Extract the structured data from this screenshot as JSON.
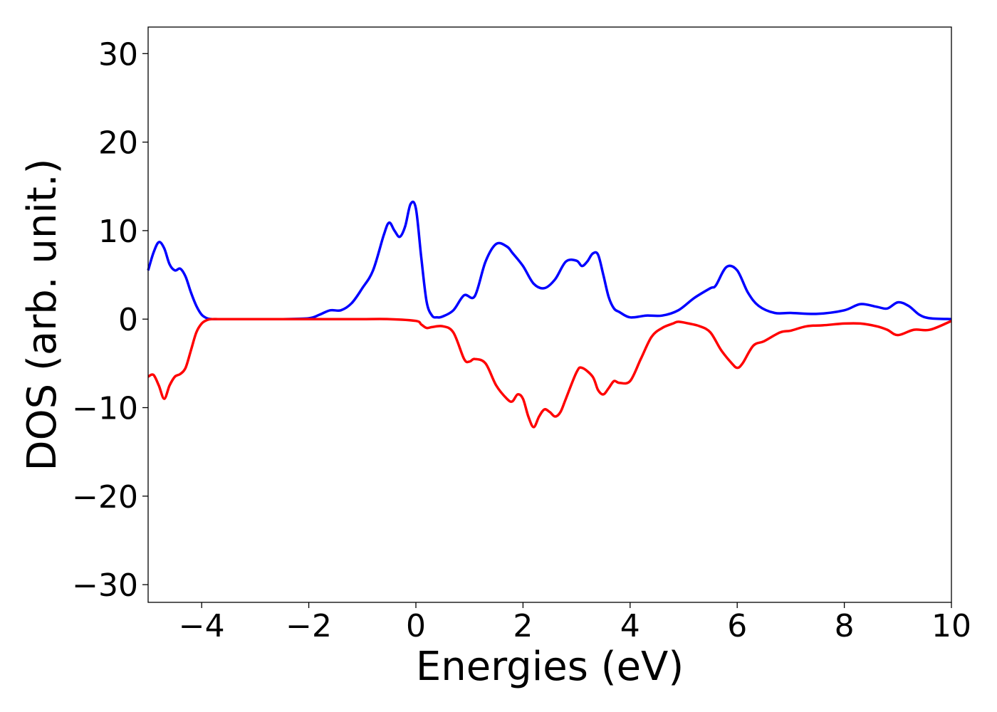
{
  "chart_data": {
    "type": "line",
    "title": "",
    "xlabel": "Energies (eV)",
    "ylabel": "DOS (arb. unit.)",
    "xlim": [
      -5,
      10
    ],
    "ylim": [
      -32,
      33
    ],
    "xticks": [
      -4,
      -2,
      0,
      2,
      4,
      6,
      8,
      10
    ],
    "xtick_labels": [
      "−4",
      "−2",
      "0",
      "2",
      "4",
      "6",
      "8",
      "10"
    ],
    "yticks": [
      -30,
      -20,
      -10,
      0,
      10,
      20,
      30
    ],
    "ytick_labels": [
      "−30",
      "−20",
      "−10",
      "0",
      "10",
      "20",
      "30"
    ],
    "grid": false,
    "legend": "none",
    "series": [
      {
        "color": "#0000ff",
        "x": [
          -5.0,
          -4.9,
          -4.8,
          -4.7,
          -4.6,
          -4.5,
          -4.4,
          -4.3,
          -4.2,
          -4.1,
          -4.0,
          -3.9,
          -3.8,
          -3.7,
          -3.6,
          -3.5,
          -3.0,
          -2.5,
          -2.0,
          -1.8,
          -1.6,
          -1.4,
          -1.2,
          -1.0,
          -0.8,
          -0.6,
          -0.5,
          -0.4,
          -0.3,
          -0.2,
          -0.1,
          0.0,
          0.1,
          0.2,
          0.3,
          0.4,
          0.5,
          0.7,
          0.9,
          1.1,
          1.3,
          1.5,
          1.7,
          1.8,
          2.0,
          2.2,
          2.4,
          2.6,
          2.8,
          3.0,
          3.1,
          3.2,
          3.3,
          3.4,
          3.5,
          3.6,
          3.7,
          3.8,
          4.0,
          4.3,
          4.6,
          4.9,
          5.2,
          5.5,
          5.6,
          5.8,
          6.0,
          6.2,
          6.4,
          6.7,
          7.0,
          7.5,
          8.0,
          8.3,
          8.6,
          8.8,
          9.0,
          9.2,
          9.4,
          9.6,
          10.0
        ],
        "y": [
          5.5,
          7.5,
          8.7,
          8.0,
          6.2,
          5.5,
          5.7,
          4.8,
          3.0,
          1.5,
          0.5,
          0.1,
          0.0,
          0.0,
          0.0,
          0.0,
          0.0,
          0.0,
          0.1,
          0.5,
          1.0,
          1.0,
          1.8,
          3.5,
          5.5,
          9.5,
          10.9,
          10.0,
          9.3,
          10.5,
          13.0,
          12.5,
          7.0,
          2.0,
          0.4,
          0.2,
          0.3,
          1.0,
          2.7,
          2.6,
          6.5,
          8.5,
          8.2,
          7.5,
          6.0,
          4.0,
          3.5,
          4.5,
          6.5,
          6.6,
          6.0,
          6.5,
          7.4,
          7.3,
          5.0,
          2.5,
          1.2,
          0.8,
          0.2,
          0.4,
          0.4,
          1.0,
          2.4,
          3.5,
          3.8,
          5.9,
          5.5,
          3.0,
          1.5,
          0.7,
          0.7,
          0.6,
          1.0,
          1.7,
          1.4,
          1.2,
          1.9,
          1.5,
          0.5,
          0.1,
          0.0
        ]
      },
      {
        "color": "#ff0000",
        "x": [
          -5.0,
          -4.9,
          -4.8,
          -4.7,
          -4.6,
          -4.5,
          -4.4,
          -4.3,
          -4.2,
          -4.1,
          -4.0,
          -3.9,
          -3.8,
          -3.7,
          -3.6,
          -3.5,
          -3.0,
          -2.5,
          -2.0,
          -1.5,
          -1.0,
          -0.5,
          0.0,
          0.1,
          0.2,
          0.3,
          0.5,
          0.7,
          0.9,
          1.0,
          1.1,
          1.3,
          1.5,
          1.7,
          1.8,
          1.9,
          2.0,
          2.1,
          2.2,
          2.3,
          2.4,
          2.5,
          2.6,
          2.7,
          2.8,
          3.0,
          3.1,
          3.3,
          3.4,
          3.5,
          3.6,
          3.7,
          3.8,
          4.0,
          4.2,
          4.4,
          4.6,
          4.8,
          4.9,
          5.1,
          5.3,
          5.5,
          5.7,
          5.9,
          6.0,
          6.1,
          6.3,
          6.5,
          6.8,
          7.0,
          7.3,
          7.6,
          8.0,
          8.3,
          8.6,
          8.8,
          9.0,
          9.3,
          9.6,
          10.0
        ],
        "y": [
          -6.5,
          -6.3,
          -7.5,
          -9.0,
          -7.5,
          -6.5,
          -6.2,
          -5.5,
          -3.5,
          -1.5,
          -0.5,
          -0.1,
          0.0,
          0.0,
          0.0,
          0.0,
          0.0,
          0.0,
          0.0,
          0.0,
          0.0,
          0.0,
          -0.2,
          -0.6,
          -1.0,
          -0.9,
          -0.8,
          -1.5,
          -4.5,
          -4.8,
          -4.5,
          -5.0,
          -7.5,
          -9.0,
          -9.3,
          -8.5,
          -9.0,
          -11.0,
          -12.2,
          -11.0,
          -10.2,
          -10.5,
          -11.0,
          -10.5,
          -9.0,
          -6.0,
          -5.5,
          -6.5,
          -8.0,
          -8.5,
          -7.8,
          -7.0,
          -7.2,
          -7.0,
          -4.5,
          -2.0,
          -1.0,
          -0.5,
          -0.3,
          -0.5,
          -0.8,
          -1.5,
          -3.5,
          -5.0,
          -5.5,
          -5.0,
          -3.0,
          -2.5,
          -1.5,
          -1.3,
          -0.8,
          -0.7,
          -0.5,
          -0.5,
          -0.8,
          -1.2,
          -1.8,
          -1.2,
          -1.2,
          -0.2
        ]
      }
    ]
  }
}
